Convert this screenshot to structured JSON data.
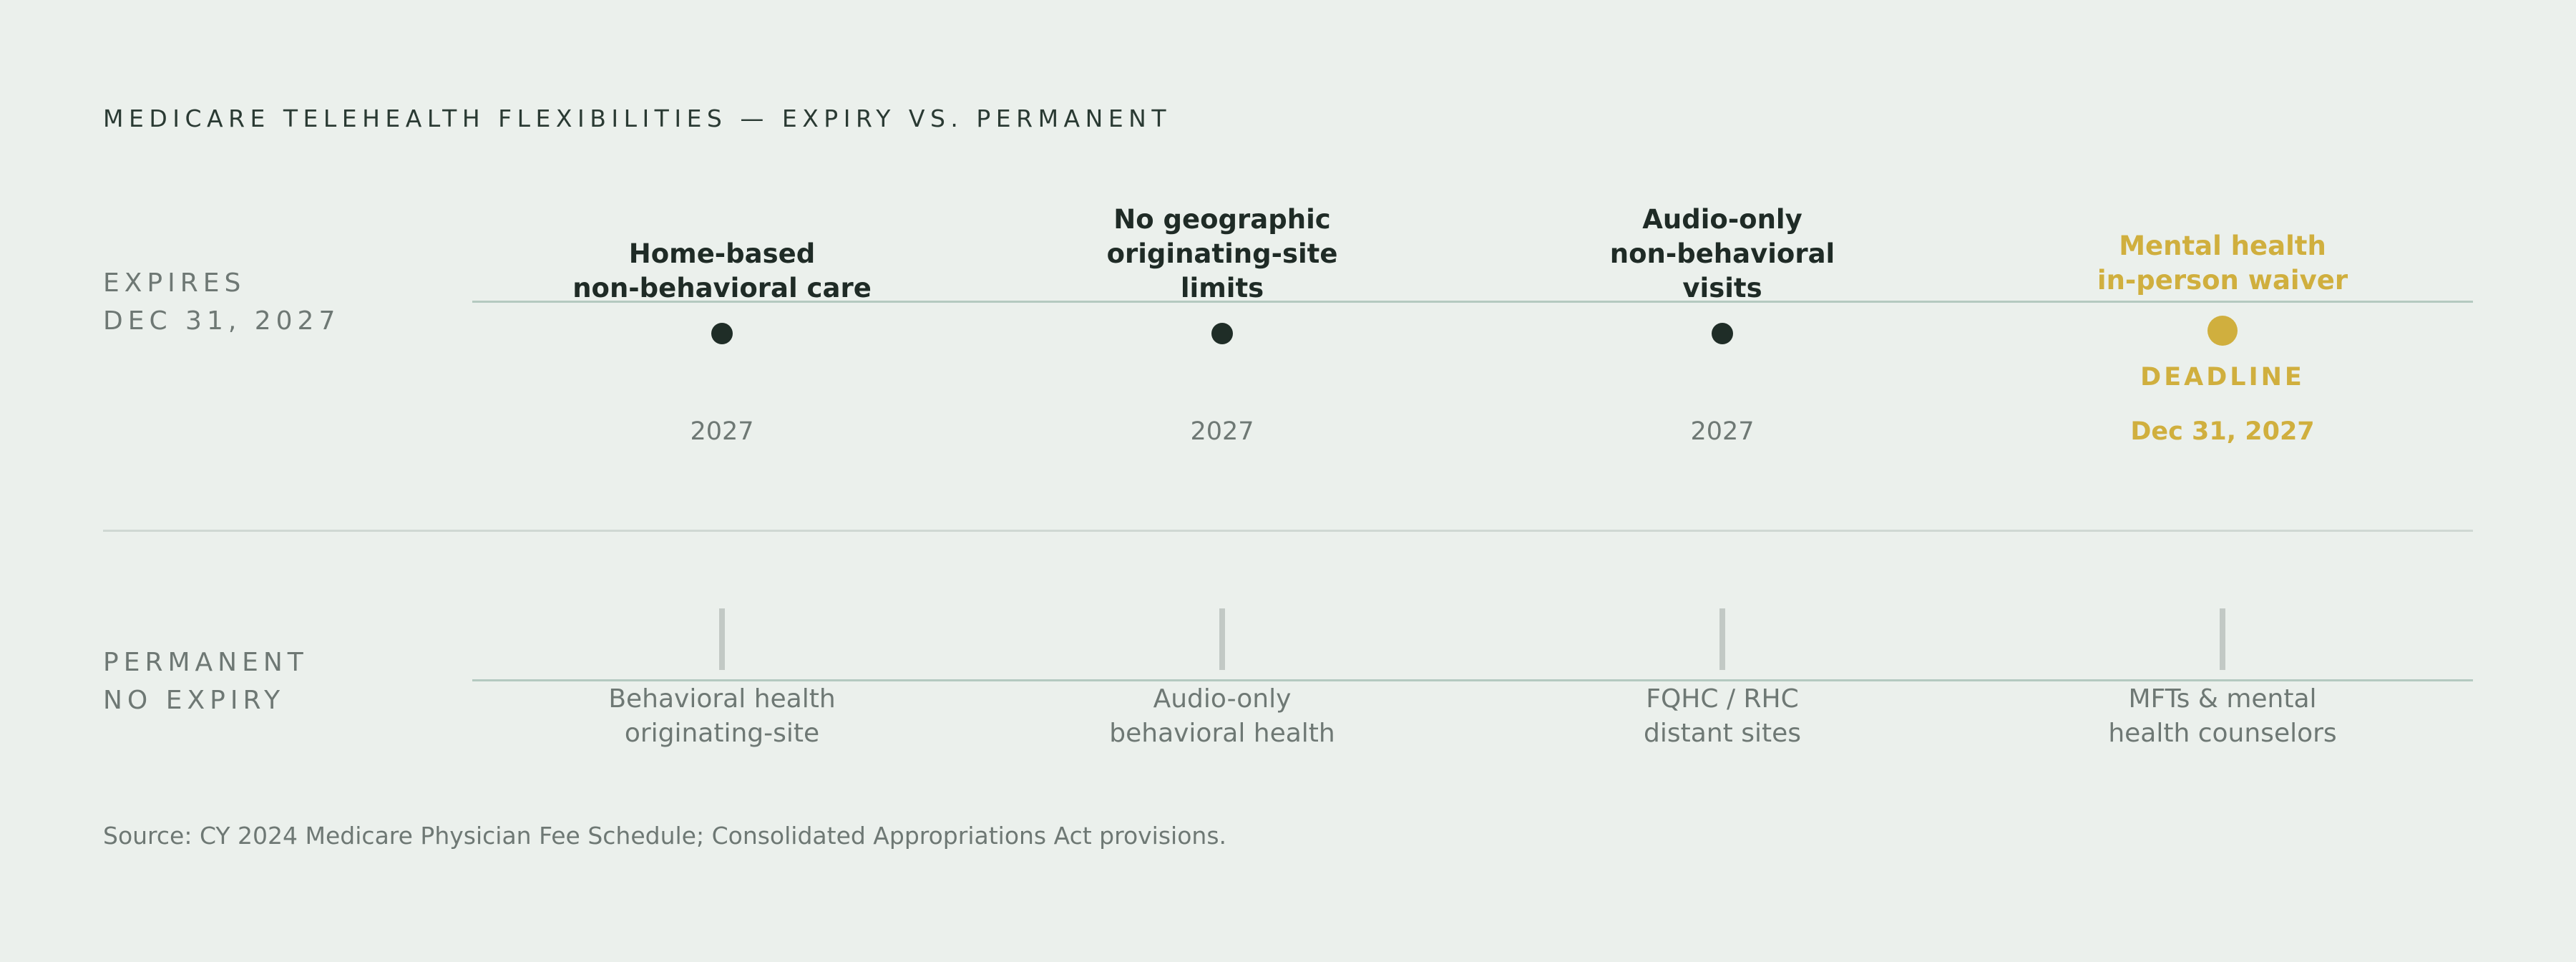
{
  "title": "MEDICARE TELEHEALTH FLEXIBILITIES — EXPIRY VS. PERMANENT",
  "rows": {
    "expires": {
      "line1": "EXPIRES",
      "line2": "DEC 31, 2027"
    },
    "permanent": {
      "line1": "PERMANENT",
      "line2": "NO EXPIRY"
    }
  },
  "expiring": [
    {
      "lines": [
        "Home-based",
        "non-behavioral care"
      ],
      "year": "2027"
    },
    {
      "lines": [
        "No geographic",
        "originating-site",
        "limits"
      ],
      "year": "2027"
    },
    {
      "lines": [
        "Audio-only",
        "non-behavioral",
        "visits"
      ],
      "year": "2027"
    },
    {
      "lines": [
        "Mental health",
        "in-person waiver"
      ],
      "tag": "DEADLINE",
      "year": "Dec 31, 2027",
      "highlight": true
    }
  ],
  "permanent_items": [
    {
      "lines": [
        "Behavioral health",
        "originating-site"
      ]
    },
    {
      "lines": [
        "Audio-only",
        "behavioral health"
      ]
    },
    {
      "lines": [
        "FQHC / RHC",
        "distant sites"
      ]
    },
    {
      "lines": [
        "MFTs & mental",
        "health counselors"
      ]
    }
  ],
  "source": "Source: CY 2024 Medicare Physician Fee Schedule; Consolidated Appropriations Act provisions.",
  "colors": {
    "background": "#ebf0ec",
    "text": "#1f2b26",
    "muted": "#6e7874",
    "highlight": "#d0af3e",
    "track": "#b4c9c0"
  }
}
